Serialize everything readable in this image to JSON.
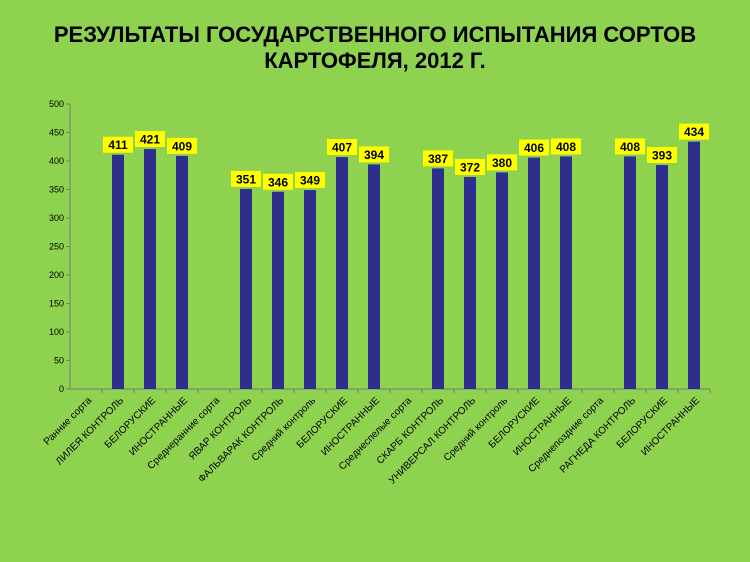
{
  "colors": {
    "background": "#8ed24f",
    "bar": "#2d2f8f",
    "label_box": "#ffff00",
    "axis": "#7a7a7a"
  },
  "chart_data": {
    "type": "bar",
    "title": "РЕЗУЛЬТАТЫ ГОСУДАРСТВЕННОГО ИСПЫТАНИЯ СОРТОВ КАРТОФЕЛЯ, 2012 Г.",
    "title_lines": [
      "РЕЗУЛЬТАТЫ ГОСУДАРСТВЕННОГО ИСПЫТАНИЯ СОРТОВ",
      "КАРТОФЕЛЯ, 2012 Г."
    ],
    "categories": [
      "Ранние сорта",
      "ЛИЛЕЯ КОНТРОЛЬ",
      "БЕЛОРУСКИЕ",
      "ИНОСТРАННЫЕ",
      "Среднеранние сорта",
      "ЯВАР КОНТРОЛЬ",
      "ФАЛЬВАРАК КОНТРОЛЬ",
      "Средний контроль",
      "БЕЛОРУСКИЕ",
      "ИНОСТРАННЫЕ",
      "Среднеспелые сорта",
      "СКАРБ КОНТРОЛЬ",
      "УНИВЕРСАЛ КОНТРОЛЬ",
      "Средний контроль",
      "БЕЛОРУСКИЕ",
      "ИНОСТРАННЫЕ",
      "Среднепоздние сорта",
      "РАГНЕДА КОНТРОЛЬ",
      "БЕЛОРУСКИЕ",
      "ИНОСТРАННЫЕ"
    ],
    "values": [
      null,
      411,
      421,
      409,
      null,
      351,
      346,
      349,
      407,
      394,
      null,
      387,
      372,
      380,
      406,
      408,
      null,
      408,
      393,
      434
    ],
    "ylim": [
      0,
      500
    ],
    "yticks": [
      0,
      50,
      100,
      150,
      200,
      250,
      300,
      350,
      400,
      450,
      500
    ],
    "grid": false,
    "legend": "none",
    "data_labels": true
  }
}
